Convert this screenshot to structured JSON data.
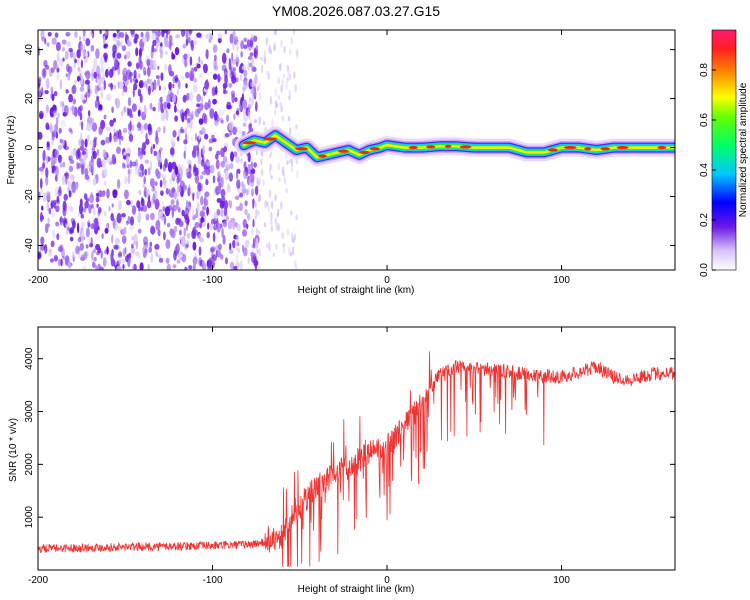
{
  "title": "YM08.2026.087.03.27.G15",
  "chart_data": [
    {
      "type": "heatmap",
      "xlabel": "Height of straight line (km)",
      "ylabel": "Frequency (Hz)",
      "xlim": [
        -200,
        165
      ],
      "ylim": [
        -50,
        48
      ],
      "x_ticks": [
        -200,
        -100,
        0,
        100
      ],
      "y_ticks": [
        -40,
        -20,
        0,
        20,
        40
      ],
      "colorbar": {
        "label": "Normalized spectral amplitude",
        "range": [
          0,
          0.96
        ],
        "ticks": [
          0.0,
          0.2,
          0.4,
          0.6,
          0.8
        ],
        "tick_labels": [
          "0.0",
          "0.2",
          "0.4",
          "0.6",
          "0.8"
        ]
      },
      "trace": {
        "x": [
          -82,
          -76,
          -70,
          -64,
          -58,
          -52,
          -46,
          -40,
          -34,
          -28,
          -22,
          -16,
          -10,
          -4,
          0,
          10,
          20,
          30,
          40,
          50,
          60,
          70,
          80,
          90,
          100,
          110,
          120,
          130,
          140,
          150,
          165
        ],
        "y": [
          1,
          3,
          2,
          5,
          2,
          -1,
          0,
          -4,
          -3,
          -2,
          -1,
          -3,
          -1,
          0,
          1,
          0,
          0,
          0.5,
          0.5,
          0,
          0,
          0,
          -2,
          -2,
          0,
          0,
          -1,
          0,
          0,
          0,
          0
        ]
      },
      "noise_region_x": [
        -200,
        -80
      ]
    },
    {
      "type": "line",
      "xlabel": "Height of straight line (km)",
      "ylabel": "SNR (10 * v/v)",
      "xlim": [
        -200,
        165
      ],
      "ylim": [
        0,
        4600
      ],
      "x_ticks": [
        -200,
        -100,
        0,
        100
      ],
      "y_ticks": [
        1000,
        2000,
        3000,
        4000
      ],
      "color": "#ee3333",
      "series": [
        {
          "x": [
            -200,
            -180,
            -160,
            -140,
            -120,
            -100,
            -80,
            -70,
            -60,
            -55,
            -50,
            -45,
            -40,
            -30,
            -20,
            -10,
            0,
            10,
            20,
            30,
            40,
            60,
            80,
            100,
            110,
            120,
            130,
            140,
            150,
            165
          ],
          "values": [
            400,
            420,
            430,
            440,
            450,
            460,
            480,
            520,
            650,
            900,
            1200,
            1400,
            1600,
            1800,
            2000,
            2200,
            2400,
            2700,
            3200,
            3700,
            3850,
            3800,
            3700,
            3650,
            3750,
            3850,
            3650,
            3600,
            3700,
            3750
          ]
        }
      ]
    }
  ]
}
